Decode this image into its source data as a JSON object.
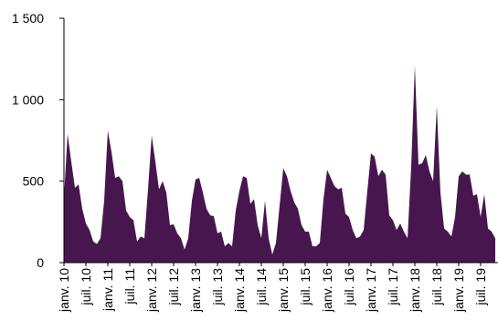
{
  "chart_data": {
    "type": "area",
    "color": "#48164f",
    "categories": [
      "janv. 10",
      null,
      null,
      null,
      null,
      null,
      "juil. 10",
      null,
      null,
      null,
      null,
      null,
      "janv. 11",
      null,
      null,
      null,
      null,
      null,
      "juil. 11",
      null,
      null,
      null,
      null,
      null,
      "janv. 12",
      null,
      null,
      null,
      null,
      null,
      "juil. 12",
      null,
      null,
      null,
      null,
      null,
      "janv. 13",
      null,
      null,
      null,
      null,
      null,
      "juil. 13",
      null,
      null,
      null,
      null,
      null,
      "janv. 14",
      null,
      null,
      null,
      null,
      null,
      "juil. 14",
      null,
      null,
      null,
      null,
      null,
      "janv. 15",
      null,
      null,
      null,
      null,
      null,
      "juil. 15",
      null,
      null,
      null,
      null,
      null,
      "janv. 16",
      null,
      null,
      null,
      null,
      null,
      "juil. 16",
      null,
      null,
      null,
      null,
      null,
      "janv. 17",
      null,
      null,
      null,
      null,
      null,
      "juil. 17",
      null,
      null,
      null,
      null,
      null,
      "janv. 18",
      null,
      null,
      null,
      null,
      null,
      "juil. 18",
      null,
      null,
      null,
      null,
      null,
      "janv. 19",
      null,
      null,
      null,
      null,
      null,
      "juil. 19",
      null,
      null,
      null,
      null
    ],
    "values": [
      400,
      790,
      620,
      460,
      480,
      330,
      240,
      200,
      130,
      115,
      150,
      380,
      810,
      680,
      520,
      530,
      500,
      320,
      280,
      260,
      130,
      160,
      150,
      450,
      780,
      620,
      450,
      500,
      430,
      230,
      235,
      180,
      150,
      80,
      150,
      380,
      510,
      520,
      430,
      330,
      290,
      285,
      180,
      190,
      100,
      120,
      100,
      320,
      440,
      530,
      520,
      360,
      390,
      230,
      150,
      380,
      150,
      50,
      120,
      350,
      580,
      530,
      440,
      370,
      330,
      230,
      190,
      190,
      100,
      100,
      120,
      390,
      570,
      520,
      470,
      450,
      460,
      300,
      280,
      200,
      150,
      160,
      200,
      440,
      670,
      650,
      530,
      570,
      540,
      290,
      260,
      200,
      240,
      190,
      150,
      590,
      1210,
      600,
      610,
      660,
      560,
      500,
      960,
      430,
      210,
      190,
      160,
      280,
      530,
      560,
      540,
      540,
      410,
      420,
      280,
      420,
      210,
      190,
      150
    ],
    "ylim": [
      0,
      1500
    ],
    "yticks": [
      0,
      500,
      {
        "value": 1000,
        "label": "1 000"
      },
      {
        "value": 1500,
        "label": "1 500"
      }
    ]
  }
}
